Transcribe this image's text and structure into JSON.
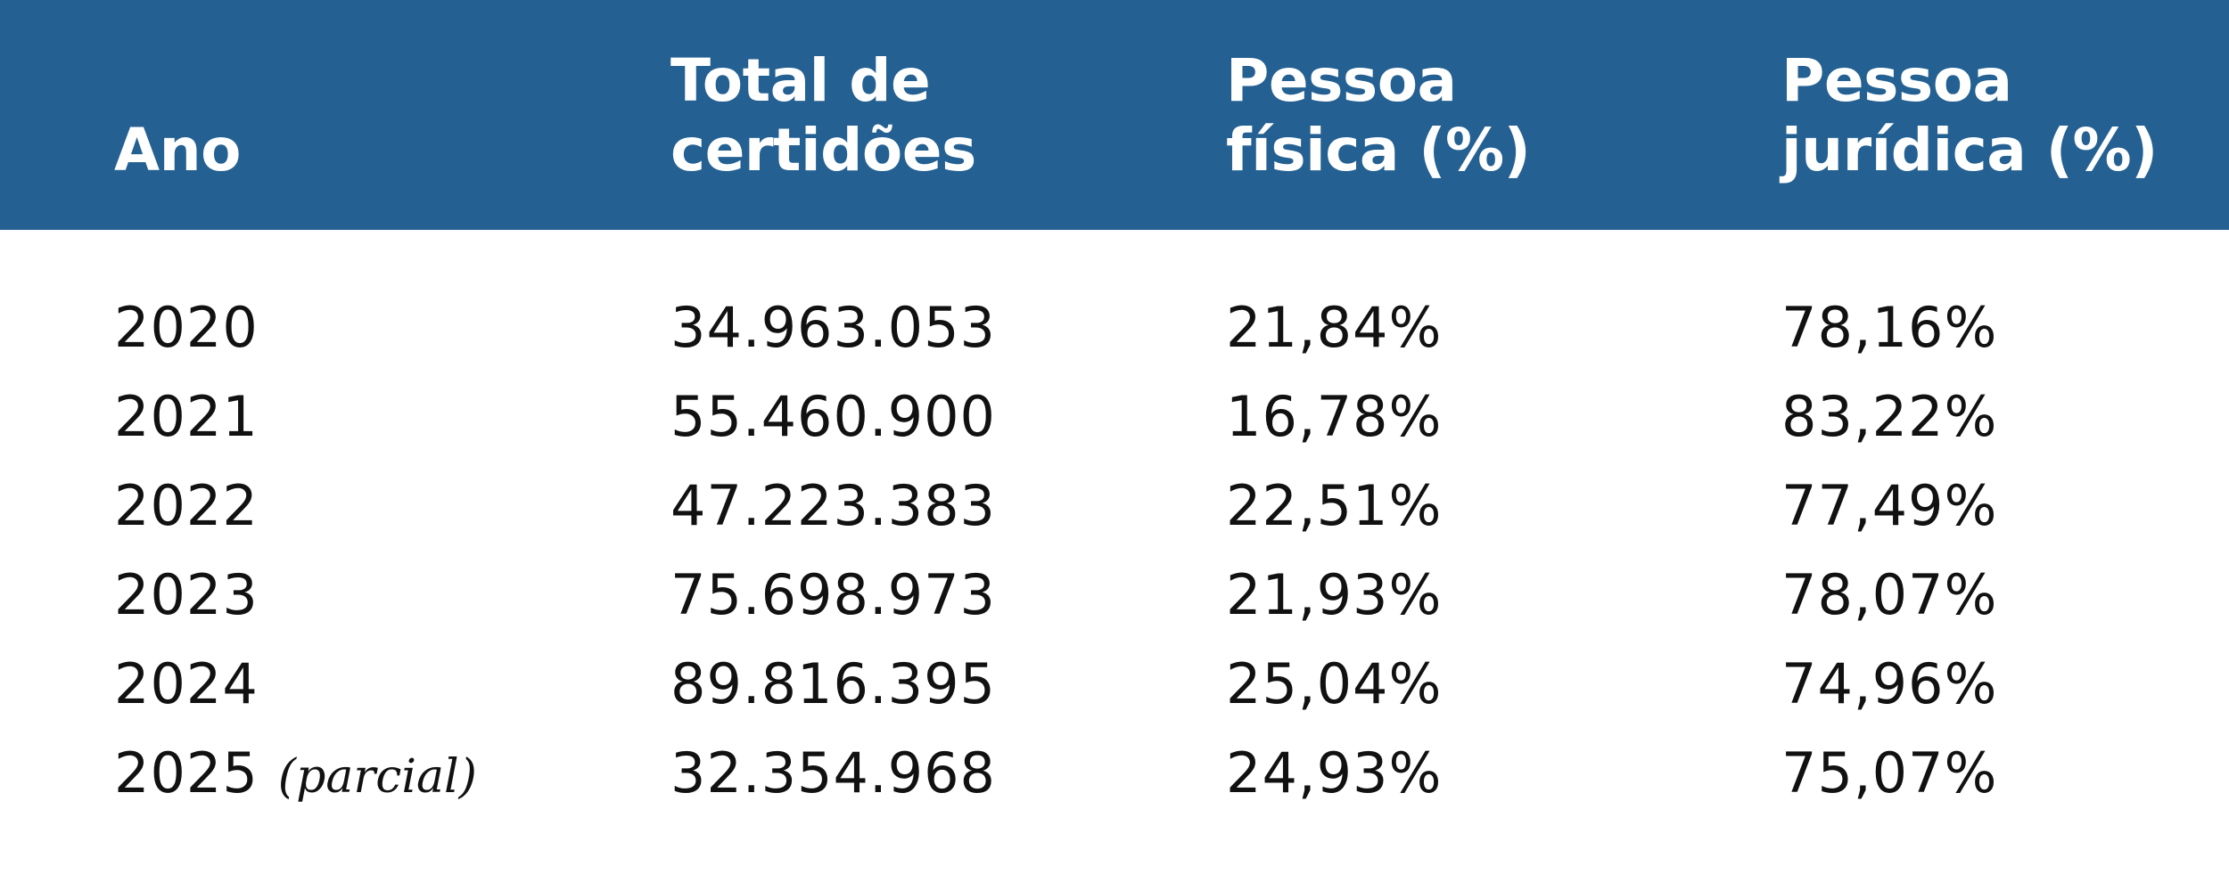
{
  "colors": {
    "header_background": "#246192",
    "header_text": "#ffffff",
    "body_text": "#111111",
    "background": "#ffffff"
  },
  "chart_data": {
    "type": "table",
    "columns": [
      [
        "Ano"
      ],
      [
        "Total de",
        "certidões"
      ],
      [
        "Pessoa",
        "física (%)"
      ],
      [
        "Pessoa",
        "jurídica (%)"
      ]
    ],
    "rows": [
      {
        "ano": "2020",
        "note": "",
        "total": "34.963.053",
        "pf": "21,84%",
        "pj": "78,16%"
      },
      {
        "ano": "2021",
        "note": "",
        "total": "55.460.900",
        "pf": "16,78%",
        "pj": "83,22%"
      },
      {
        "ano": "2022",
        "note": "",
        "total": "47.223.383",
        "pf": "22,51%",
        "pj": "77,49%"
      },
      {
        "ano": "2023",
        "note": "",
        "total": "75.698.973",
        "pf": "21,93%",
        "pj": "78,07%"
      },
      {
        "ano": "2024",
        "note": "",
        "total": "89.816.395",
        "pf": "25,04%",
        "pj": "74,96%"
      },
      {
        "ano": "2025",
        "note": "(parcial)",
        "total": "32.354.968",
        "pf": "24,93%",
        "pj": "75,07%"
      }
    ]
  }
}
